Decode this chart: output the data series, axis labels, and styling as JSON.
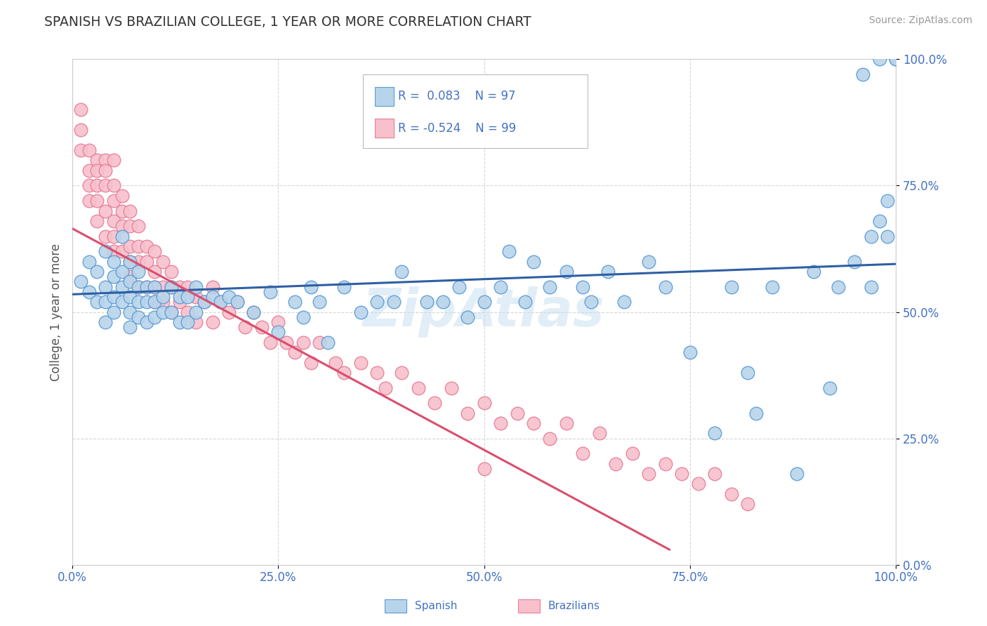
{
  "title": "SPANISH VS BRAZILIAN COLLEGE, 1 YEAR OR MORE CORRELATION CHART",
  "source_text": "Source: ZipAtlas.com",
  "ylabel": "College, 1 year or more",
  "xlim": [
    0.0,
    1.0
  ],
  "ylim": [
    0.0,
    1.0
  ],
  "xtick_labels": [
    "0.0%",
    "25.0%",
    "50.0%",
    "75.0%",
    "100.0%"
  ],
  "xtick_vals": [
    0.0,
    0.25,
    0.5,
    0.75,
    1.0
  ],
  "ytick_labels": [
    "0.0%",
    "25.0%",
    "50.0%",
    "75.0%",
    "100.0%"
  ],
  "ytick_vals": [
    0.0,
    0.25,
    0.5,
    0.75,
    1.0
  ],
  "spanish_fill": "#b8d4ea",
  "spanish_edge": "#5b9bd5",
  "brazilian_fill": "#f7c0cc",
  "brazilian_edge": "#e87d96",
  "trend_spanish_color": "#2e5fa3",
  "trend_brazilian_color": "#d94f6e",
  "R_spanish": "0.083",
  "N_spanish": "97",
  "R_brazilian": "-0.524",
  "N_brazilian": "99",
  "watermark": "ZipAtlas",
  "background_color": "#ffffff",
  "grid_color": "#cccccc",
  "title_color": "#333333",
  "axis_label_color": "#555555",
  "tick_label_color": "#4472c4",
  "legend_text_color": "#4472c4",
  "spanish_trend_start_y": 0.535,
  "spanish_trend_end_y": 0.595,
  "brazilian_trend_start_y": 0.665,
  "brazilian_trend_end_y": 0.03,
  "spanish_x": [
    0.01,
    0.02,
    0.02,
    0.03,
    0.03,
    0.04,
    0.04,
    0.04,
    0.04,
    0.05,
    0.05,
    0.05,
    0.05,
    0.06,
    0.06,
    0.06,
    0.06,
    0.07,
    0.07,
    0.07,
    0.07,
    0.07,
    0.08,
    0.08,
    0.08,
    0.08,
    0.09,
    0.09,
    0.09,
    0.1,
    0.1,
    0.1,
    0.11,
    0.11,
    0.12,
    0.12,
    0.13,
    0.13,
    0.14,
    0.14,
    0.15,
    0.15,
    0.16,
    0.17,
    0.18,
    0.19,
    0.2,
    0.22,
    0.24,
    0.25,
    0.27,
    0.28,
    0.29,
    0.3,
    0.31,
    0.33,
    0.35,
    0.37,
    0.39,
    0.4,
    0.43,
    0.45,
    0.47,
    0.48,
    0.5,
    0.52,
    0.53,
    0.55,
    0.56,
    0.58,
    0.6,
    0.62,
    0.63,
    0.65,
    0.67,
    0.7,
    0.72,
    0.75,
    0.78,
    0.8,
    0.82,
    0.83,
    0.85,
    0.88,
    0.9,
    0.92,
    0.93,
    0.95,
    0.97,
    0.98,
    0.99,
    1.0,
    1.0,
    0.96,
    0.97,
    0.98,
    0.99
  ],
  "spanish_y": [
    0.56,
    0.6,
    0.54,
    0.58,
    0.52,
    0.62,
    0.55,
    0.52,
    0.48,
    0.6,
    0.57,
    0.53,
    0.5,
    0.58,
    0.55,
    0.52,
    0.65,
    0.6,
    0.56,
    0.53,
    0.5,
    0.47,
    0.58,
    0.55,
    0.52,
    0.49,
    0.55,
    0.52,
    0.48,
    0.55,
    0.52,
    0.49,
    0.53,
    0.5,
    0.55,
    0.5,
    0.53,
    0.48,
    0.53,
    0.48,
    0.55,
    0.5,
    0.52,
    0.53,
    0.52,
    0.53,
    0.52,
    0.5,
    0.54,
    0.46,
    0.52,
    0.49,
    0.55,
    0.52,
    0.44,
    0.55,
    0.5,
    0.52,
    0.52,
    0.58,
    0.52,
    0.52,
    0.55,
    0.49,
    0.52,
    0.55,
    0.62,
    0.52,
    0.6,
    0.55,
    0.58,
    0.55,
    0.52,
    0.58,
    0.52,
    0.6,
    0.55,
    0.42,
    0.26,
    0.55,
    0.38,
    0.3,
    0.55,
    0.18,
    0.58,
    0.35,
    0.55,
    0.6,
    0.55,
    0.68,
    0.72,
    1.0,
    1.0,
    0.97,
    0.65,
    1.0,
    0.65
  ],
  "brazilian_x": [
    0.01,
    0.01,
    0.01,
    0.02,
    0.02,
    0.02,
    0.02,
    0.03,
    0.03,
    0.03,
    0.03,
    0.03,
    0.04,
    0.04,
    0.04,
    0.04,
    0.04,
    0.05,
    0.05,
    0.05,
    0.05,
    0.05,
    0.05,
    0.06,
    0.06,
    0.06,
    0.06,
    0.07,
    0.07,
    0.07,
    0.07,
    0.07,
    0.08,
    0.08,
    0.08,
    0.08,
    0.09,
    0.09,
    0.09,
    0.1,
    0.1,
    0.1,
    0.1,
    0.11,
    0.11,
    0.11,
    0.12,
    0.12,
    0.12,
    0.13,
    0.13,
    0.14,
    0.14,
    0.15,
    0.15,
    0.16,
    0.17,
    0.17,
    0.18,
    0.19,
    0.2,
    0.21,
    0.22,
    0.23,
    0.24,
    0.25,
    0.26,
    0.27,
    0.28,
    0.29,
    0.3,
    0.32,
    0.33,
    0.35,
    0.37,
    0.38,
    0.4,
    0.42,
    0.44,
    0.46,
    0.48,
    0.5,
    0.52,
    0.54,
    0.56,
    0.58,
    0.6,
    0.62,
    0.64,
    0.66,
    0.68,
    0.7,
    0.72,
    0.74,
    0.76,
    0.78,
    0.8,
    0.82,
    0.5
  ],
  "brazilian_y": [
    0.9,
    0.86,
    0.82,
    0.82,
    0.78,
    0.75,
    0.72,
    0.8,
    0.78,
    0.75,
    0.72,
    0.68,
    0.8,
    0.78,
    0.75,
    0.7,
    0.65,
    0.8,
    0.75,
    0.72,
    0.68,
    0.65,
    0.62,
    0.73,
    0.7,
    0.67,
    0.62,
    0.7,
    0.67,
    0.63,
    0.6,
    0.57,
    0.67,
    0.63,
    0.6,
    0.55,
    0.63,
    0.6,
    0.55,
    0.62,
    0.58,
    0.55,
    0.52,
    0.6,
    0.55,
    0.52,
    0.58,
    0.55,
    0.5,
    0.55,
    0.52,
    0.55,
    0.5,
    0.53,
    0.48,
    0.52,
    0.55,
    0.48,
    0.52,
    0.5,
    0.52,
    0.47,
    0.5,
    0.47,
    0.44,
    0.48,
    0.44,
    0.42,
    0.44,
    0.4,
    0.44,
    0.4,
    0.38,
    0.4,
    0.38,
    0.35,
    0.38,
    0.35,
    0.32,
    0.35,
    0.3,
    0.32,
    0.28,
    0.3,
    0.28,
    0.25,
    0.28,
    0.22,
    0.26,
    0.2,
    0.22,
    0.18,
    0.2,
    0.18,
    0.16,
    0.18,
    0.14,
    0.12,
    0.19
  ]
}
